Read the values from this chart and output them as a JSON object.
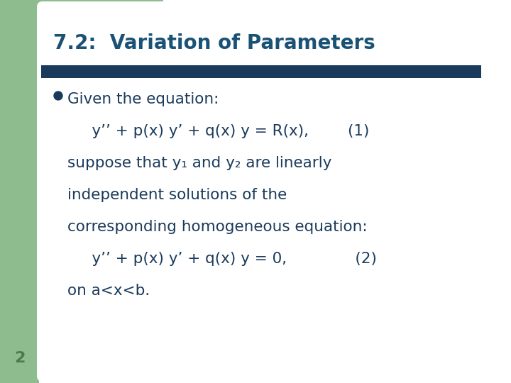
{
  "title": "7.2:  Variation of Parameters",
  "title_color": "#1a5276",
  "title_fontsize": 20,
  "background_color": "#ffffff",
  "left_bar_color": "#8fbc8f",
  "divider_color": "#1a3a5c",
  "body_text_color": "#1a3a5c",
  "bullet_color": "#1a3a5c",
  "number_color": "#4a7c4e",
  "number_text": "2",
  "lines": [
    "Given the equation:",
    "     y’’ + p(x) y’ + q(x) y = R(x),        (1)",
    "suppose that y₁ and y₂ are linearly",
    "independent solutions of the",
    "corresponding homogeneous equation:",
    "     y’’ + p(x) y’ + q(x) y = 0,              (2)",
    "on a<x<b."
  ],
  "body_fontsize": 15.5
}
